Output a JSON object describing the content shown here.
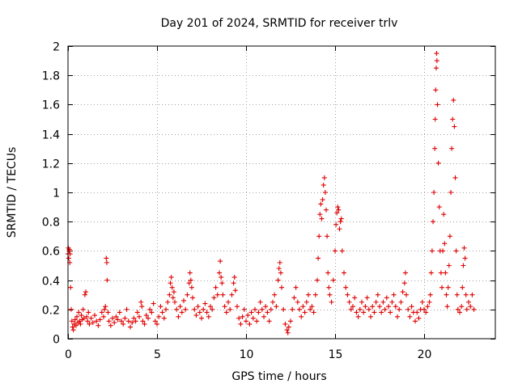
{
  "chart_data": {
    "type": "scatter",
    "title": "Day 201 of 2024, SRMTID for receiver trlv",
    "xlabel": "GPS time / hours",
    "ylabel": "SRMTID / TECUs",
    "xlim": [
      0,
      24
    ],
    "ylim": [
      0,
      2
    ],
    "xticks": [
      0,
      5,
      10,
      15,
      20
    ],
    "yticks": [
      0,
      0.2,
      0.4,
      0.6,
      0.8,
      1,
      1.2,
      1.4,
      1.6,
      1.8,
      2
    ],
    "ytick_labels": [
      "0",
      "0.2",
      "0.4",
      "0.6",
      "0.8",
      "1",
      "1.2",
      "1.4",
      "1.6",
      "1.8",
      "2"
    ],
    "grid": true,
    "marker": "+",
    "color": "#e00000",
    "series": [
      {
        "name": "SRMTID",
        "points": [
          [
            0.0,
            0.58
          ],
          [
            0.02,
            0.62
          ],
          [
            0.04,
            0.55
          ],
          [
            0.06,
            0.6
          ],
          [
            0.08,
            0.61
          ],
          [
            0.1,
            0.52
          ],
          [
            0.12,
            0.58
          ],
          [
            0.15,
            0.35
          ],
          [
            0.18,
            0.2
          ],
          [
            0.22,
            0.12
          ],
          [
            0.26,
            0.08
          ],
          [
            0.3,
            0.06
          ],
          [
            0.35,
            0.1
          ],
          [
            0.4,
            0.13
          ],
          [
            0.45,
            0.09
          ],
          [
            0.5,
            0.15
          ],
          [
            0.55,
            0.11
          ],
          [
            0.6,
            0.18
          ],
          [
            0.65,
            0.12
          ],
          [
            0.7,
            0.1
          ],
          [
            0.75,
            0.16
          ],
          [
            0.8,
            0.13
          ],
          [
            0.85,
            0.2
          ],
          [
            0.9,
            0.14
          ],
          [
            0.95,
            0.3
          ],
          [
            1.0,
            0.32
          ],
          [
            1.05,
            0.15
          ],
          [
            1.1,
            0.12
          ],
          [
            1.15,
            0.18
          ],
          [
            1.2,
            0.1
          ],
          [
            1.3,
            0.14
          ],
          [
            1.4,
            0.11
          ],
          [
            1.5,
            0.16
          ],
          [
            1.6,
            0.12
          ],
          [
            1.7,
            0.09
          ],
          [
            1.8,
            0.13
          ],
          [
            1.9,
            0.18
          ],
          [
            2.0,
            0.15
          ],
          [
            2.05,
            0.2
          ],
          [
            2.1,
            0.22
          ],
          [
            2.15,
            0.55
          ],
          [
            2.18,
            0.52
          ],
          [
            2.2,
            0.4
          ],
          [
            2.25,
            0.18
          ],
          [
            2.3,
            0.12
          ],
          [
            2.4,
            0.09
          ],
          [
            2.5,
            0.14
          ],
          [
            2.6,
            0.11
          ],
          [
            2.7,
            0.15
          ],
          [
            2.8,
            0.13
          ],
          [
            2.9,
            0.18
          ],
          [
            3.0,
            0.12
          ],
          [
            3.1,
            0.1
          ],
          [
            3.2,
            0.14
          ],
          [
            3.3,
            0.2
          ],
          [
            3.4,
            0.12
          ],
          [
            3.5,
            0.08
          ],
          [
            3.6,
            0.11
          ],
          [
            3.7,
            0.14
          ],
          [
            3.8,
            0.12
          ],
          [
            3.9,
            0.18
          ],
          [
            4.0,
            0.15
          ],
          [
            4.1,
            0.25
          ],
          [
            4.15,
            0.22
          ],
          [
            4.2,
            0.12
          ],
          [
            4.3,
            0.1
          ],
          [
            4.4,
            0.16
          ],
          [
            4.5,
            0.14
          ],
          [
            4.6,
            0.2
          ],
          [
            4.7,
            0.18
          ],
          [
            4.8,
            0.24
          ],
          [
            4.9,
            0.12
          ],
          [
            5.0,
            0.1
          ],
          [
            5.1,
            0.15
          ],
          [
            5.2,
            0.22
          ],
          [
            5.3,
            0.18
          ],
          [
            5.4,
            0.14
          ],
          [
            5.5,
            0.2
          ],
          [
            5.6,
            0.25
          ],
          [
            5.7,
            0.3
          ],
          [
            5.75,
            0.38
          ],
          [
            5.8,
            0.42
          ],
          [
            5.85,
            0.35
          ],
          [
            5.9,
            0.28
          ],
          [
            5.95,
            0.32
          ],
          [
            6.0,
            0.25
          ],
          [
            6.1,
            0.2
          ],
          [
            6.2,
            0.15
          ],
          [
            6.3,
            0.22
          ],
          [
            6.4,
            0.18
          ],
          [
            6.5,
            0.26
          ],
          [
            6.6,
            0.2
          ],
          [
            6.7,
            0.3
          ],
          [
            6.8,
            0.38
          ],
          [
            6.85,
            0.45
          ],
          [
            6.9,
            0.4
          ],
          [
            6.95,
            0.35
          ],
          [
            7.0,
            0.28
          ],
          [
            7.1,
            0.2
          ],
          [
            7.2,
            0.16
          ],
          [
            7.3,
            0.22
          ],
          [
            7.4,
            0.18
          ],
          [
            7.5,
            0.14
          ],
          [
            7.6,
            0.2
          ],
          [
            7.7,
            0.24
          ],
          [
            7.8,
            0.18
          ],
          [
            7.9,
            0.15
          ],
          [
            8.0,
            0.22
          ],
          [
            8.1,
            0.2
          ],
          [
            8.2,
            0.28
          ],
          [
            8.3,
            0.35
          ],
          [
            8.4,
            0.3
          ],
          [
            8.5,
            0.45
          ],
          [
            8.55,
            0.53
          ],
          [
            8.6,
            0.42
          ],
          [
            8.65,
            0.38
          ],
          [
            8.7,
            0.3
          ],
          [
            8.8,
            0.22
          ],
          [
            8.9,
            0.18
          ],
          [
            9.0,
            0.25
          ],
          [
            9.1,
            0.2
          ],
          [
            9.2,
            0.3
          ],
          [
            9.3,
            0.38
          ],
          [
            9.35,
            0.42
          ],
          [
            9.4,
            0.33
          ],
          [
            9.5,
            0.22
          ],
          [
            9.6,
            0.14
          ],
          [
            9.7,
            0.1
          ],
          [
            9.8,
            0.15
          ],
          [
            9.9,
            0.2
          ],
          [
            10.0,
            0.12
          ],
          [
            10.1,
            0.16
          ],
          [
            10.2,
            0.1
          ],
          [
            10.3,
            0.18
          ],
          [
            10.4,
            0.14
          ],
          [
            10.5,
            0.2
          ],
          [
            10.6,
            0.12
          ],
          [
            10.7,
            0.18
          ],
          [
            10.8,
            0.25
          ],
          [
            10.9,
            0.2
          ],
          [
            11.0,
            0.15
          ],
          [
            11.1,
            0.22
          ],
          [
            11.2,
            0.18
          ],
          [
            11.3,
            0.12
          ],
          [
            11.4,
            0.2
          ],
          [
            11.5,
            0.25
          ],
          [
            11.6,
            0.3
          ],
          [
            11.7,
            0.22
          ],
          [
            11.8,
            0.4
          ],
          [
            11.85,
            0.48
          ],
          [
            11.9,
            0.52
          ],
          [
            11.95,
            0.45
          ],
          [
            12.0,
            0.35
          ],
          [
            12.1,
            0.2
          ],
          [
            12.2,
            0.1
          ],
          [
            12.3,
            0.06
          ],
          [
            12.35,
            0.04
          ],
          [
            12.4,
            0.08
          ],
          [
            12.5,
            0.12
          ],
          [
            12.6,
            0.2
          ],
          [
            12.7,
            0.28
          ],
          [
            12.8,
            0.35
          ],
          [
            12.9,
            0.25
          ],
          [
            13.0,
            0.2
          ],
          [
            13.1,
            0.15
          ],
          [
            13.2,
            0.22
          ],
          [
            13.3,
            0.18
          ],
          [
            13.4,
            0.25
          ],
          [
            13.5,
            0.3
          ],
          [
            13.6,
            0.2
          ],
          [
            13.7,
            0.22
          ],
          [
            13.8,
            0.18
          ],
          [
            13.9,
            0.3
          ],
          [
            14.0,
            0.4
          ],
          [
            14.05,
            0.55
          ],
          [
            14.1,
            0.7
          ],
          [
            14.15,
            0.85
          ],
          [
            14.2,
            0.92
          ],
          [
            14.25,
            0.82
          ],
          [
            14.3,
            0.95
          ],
          [
            14.35,
            1.05
          ],
          [
            14.4,
            1.1
          ],
          [
            14.45,
            1.0
          ],
          [
            14.5,
            0.88
          ],
          [
            14.55,
            0.7
          ],
          [
            14.6,
            0.45
          ],
          [
            14.65,
            0.35
          ],
          [
            14.7,
            0.3
          ],
          [
            14.8,
            0.25
          ],
          [
            14.9,
            0.4
          ],
          [
            15.0,
            0.6
          ],
          [
            15.05,
            0.78
          ],
          [
            15.1,
            0.86
          ],
          [
            15.15,
            0.9
          ],
          [
            15.2,
            0.88
          ],
          [
            15.25,
            0.75
          ],
          [
            15.3,
            0.8
          ],
          [
            15.35,
            0.82
          ],
          [
            15.4,
            0.6
          ],
          [
            15.5,
            0.45
          ],
          [
            15.6,
            0.35
          ],
          [
            15.7,
            0.3
          ],
          [
            15.8,
            0.25
          ],
          [
            15.9,
            0.2
          ],
          [
            16.0,
            0.22
          ],
          [
            16.1,
            0.28
          ],
          [
            16.2,
            0.18
          ],
          [
            16.3,
            0.15
          ],
          [
            16.4,
            0.2
          ],
          [
            16.5,
            0.25
          ],
          [
            16.6,
            0.18
          ],
          [
            16.7,
            0.22
          ],
          [
            16.8,
            0.28
          ],
          [
            16.9,
            0.2
          ],
          [
            17.0,
            0.15
          ],
          [
            17.1,
            0.22
          ],
          [
            17.2,
            0.18
          ],
          [
            17.3,
            0.25
          ],
          [
            17.4,
            0.3
          ],
          [
            17.5,
            0.22
          ],
          [
            17.6,
            0.18
          ],
          [
            17.7,
            0.25
          ],
          [
            17.8,
            0.2
          ],
          [
            17.9,
            0.28
          ],
          [
            18.0,
            0.22
          ],
          [
            18.1,
            0.18
          ],
          [
            18.2,
            0.25
          ],
          [
            18.3,
            0.3
          ],
          [
            18.4,
            0.22
          ],
          [
            18.5,
            0.15
          ],
          [
            18.6,
            0.2
          ],
          [
            18.7,
            0.25
          ],
          [
            18.8,
            0.32
          ],
          [
            18.9,
            0.38
          ],
          [
            18.95,
            0.45
          ],
          [
            19.0,
            0.3
          ],
          [
            19.1,
            0.2
          ],
          [
            19.2,
            0.15
          ],
          [
            19.3,
            0.22
          ],
          [
            19.4,
            0.18
          ],
          [
            19.5,
            0.12
          ],
          [
            19.6,
            0.18
          ],
          [
            19.7,
            0.14
          ],
          [
            19.8,
            0.2
          ],
          [
            19.9,
            0.25
          ],
          [
            20.0,
            0.2
          ],
          [
            20.1,
            0.18
          ],
          [
            20.2,
            0.22
          ],
          [
            20.3,
            0.25
          ],
          [
            20.35,
            0.3
          ],
          [
            20.4,
            0.45
          ],
          [
            20.45,
            0.6
          ],
          [
            20.5,
            0.8
          ],
          [
            20.55,
            1.0
          ],
          [
            20.6,
            1.3
          ],
          [
            20.62,
            1.5
          ],
          [
            20.65,
            1.7
          ],
          [
            20.68,
            1.85
          ],
          [
            20.7,
            1.95
          ],
          [
            20.72,
            1.9
          ],
          [
            20.75,
            1.6
          ],
          [
            20.8,
            1.2
          ],
          [
            20.85,
            0.9
          ],
          [
            20.9,
            0.6
          ],
          [
            20.95,
            0.45
          ],
          [
            21.0,
            0.35
          ],
          [
            21.05,
            0.6
          ],
          [
            21.1,
            0.85
          ],
          [
            21.15,
            0.65
          ],
          [
            21.2,
            0.45
          ],
          [
            21.25,
            0.3
          ],
          [
            21.3,
            0.22
          ],
          [
            21.35,
            0.35
          ],
          [
            21.4,
            0.5
          ],
          [
            21.45,
            0.7
          ],
          [
            21.5,
            1.0
          ],
          [
            21.55,
            1.3
          ],
          [
            21.6,
            1.5
          ],
          [
            21.65,
            1.63
          ],
          [
            21.7,
            1.45
          ],
          [
            21.75,
            1.1
          ],
          [
            21.8,
            0.6
          ],
          [
            21.85,
            0.3
          ],
          [
            21.9,
            0.2
          ],
          [
            22.0,
            0.18
          ],
          [
            22.1,
            0.22
          ],
          [
            22.15,
            0.35
          ],
          [
            22.2,
            0.5
          ],
          [
            22.25,
            0.62
          ],
          [
            22.3,
            0.55
          ],
          [
            22.35,
            0.3
          ],
          [
            22.4,
            0.2
          ],
          [
            22.5,
            0.25
          ],
          [
            22.6,
            0.22
          ],
          [
            22.7,
            0.3
          ],
          [
            22.8,
            0.2
          ]
        ]
      }
    ]
  }
}
